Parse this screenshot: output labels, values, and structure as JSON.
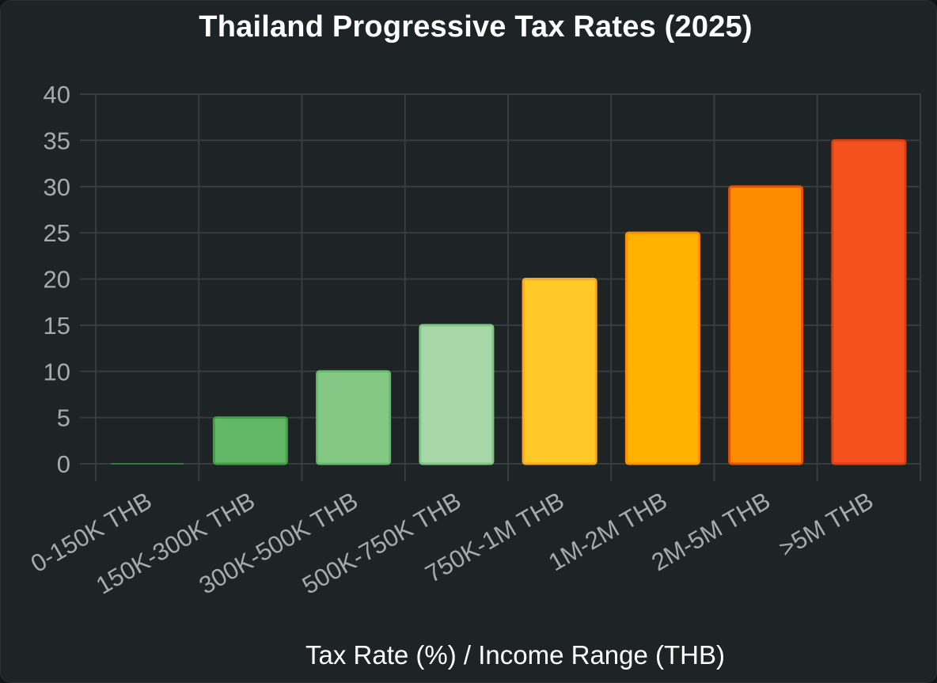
{
  "chart_data": {
    "type": "bar",
    "title": "Thailand Progressive Tax Rates (2025)",
    "xlabel": "Tax Rate (%) / Income Range (THB)",
    "ylabel": "",
    "categories": [
      "0-150K THB",
      "150K-300K THB",
      "300K-500K THB",
      "500K-750K THB",
      "750K-1M THB",
      "1M-2M THB",
      "2M-5M THB",
      ">5M THB"
    ],
    "values": [
      0,
      5,
      10,
      15,
      20,
      25,
      30,
      35
    ],
    "ylim": [
      0,
      40
    ],
    "yticks": [
      0,
      5,
      10,
      15,
      20,
      25,
      30,
      35,
      40
    ],
    "grid": true,
    "legend": "none",
    "bar_colors": [
      "#3fa34d",
      "#62b866",
      "#85c785",
      "#a7d7a6",
      "#ffca28",
      "#ffb300",
      "#ff8c00",
      "#f4511e"
    ],
    "bar_borders": [
      "#2e7d32",
      "#43a047",
      "#66bb6a",
      "#81c784",
      "#f9a825",
      "#ff8f00",
      "#e65100",
      "#d84315"
    ]
  },
  "colors": {
    "background": "#1e2426",
    "grid": "#353d40",
    "tick_label": "#a4aaad",
    "title": "#ffffff"
  }
}
